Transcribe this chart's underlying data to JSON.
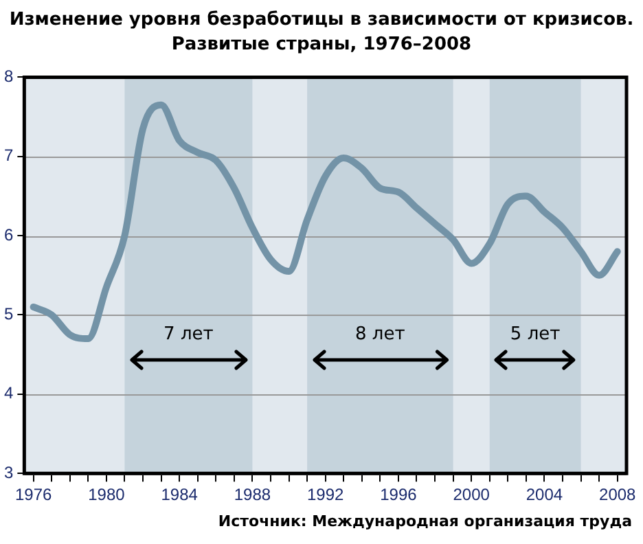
{
  "chart_data": {
    "type": "line",
    "title": "Изменение уровня безработицы в зависимости от кризисов.",
    "subtitle": "Развитые страны, 1976–2008",
    "x": [
      1976,
      1977,
      1978,
      1979,
      1980,
      1981,
      1982,
      1983,
      1984,
      1985,
      1986,
      1987,
      1988,
      1989,
      1990,
      1991,
      1992,
      1993,
      1994,
      1995,
      1996,
      1997,
      1998,
      1999,
      2000,
      2001,
      2002,
      2003,
      2004,
      2005,
      2006,
      2007,
      2008
    ],
    "series": [
      {
        "color": "#7393a7",
        "values": [
          5.1,
          5.0,
          4.75,
          4.7,
          5.35,
          6.0,
          7.35,
          7.65,
          7.2,
          7.05,
          6.95,
          6.6,
          6.1,
          5.7,
          5.55,
          6.2,
          6.75,
          6.98,
          6.85,
          6.6,
          6.55,
          6.35,
          6.15,
          5.95,
          5.65,
          5.9,
          6.4,
          6.5,
          6.3,
          6.1,
          5.8,
          5.5,
          5.8
        ]
      }
    ],
    "xlim": [
      1975.5,
      2008.5
    ],
    "xticks": [
      1976,
      {
        "value": 1977,
        "label": null
      },
      {
        "value": 1978,
        "label": null
      },
      {
        "value": 1979,
        "label": null
      },
      1980,
      {
        "value": 1981,
        "label": null
      },
      {
        "value": 1982,
        "label": null
      },
      {
        "value": 1983,
        "label": null
      },
      1984,
      {
        "value": 1985,
        "label": null
      },
      {
        "value": 1986,
        "label": null
      },
      {
        "value": 1987,
        "label": null
      },
      1988,
      {
        "value": 1989,
        "label": null
      },
      {
        "value": 1990,
        "label": null
      },
      {
        "value": 1991,
        "label": null
      },
      1992,
      {
        "value": 1993,
        "label": null
      },
      {
        "value": 1994,
        "label": null
      },
      {
        "value": 1995,
        "label": null
      },
      1996,
      {
        "value": 1997,
        "label": null
      },
      {
        "value": 1998,
        "label": null
      },
      {
        "value": 1999,
        "label": null
      },
      2000,
      {
        "value": 2001,
        "label": null
      },
      {
        "value": 2002,
        "label": null
      },
      {
        "value": 2003,
        "label": null
      },
      2004,
      {
        "value": 2005,
        "label": null
      },
      {
        "value": 2006,
        "label": null
      },
      {
        "value": 2007,
        "label": null
      },
      2008
    ],
    "ylim": [
      3,
      8
    ],
    "yticks": [
      3,
      4,
      5,
      6,
      7,
      8
    ],
    "grid": "y",
    "legend": false,
    "marker": "none",
    "line_style": "solid",
    "bands": [
      {
        "axis": "x",
        "from": 1981,
        "to": 1988,
        "label": "7 лет",
        "color": "#c5d3dc"
      },
      {
        "axis": "x",
        "from": 1991,
        "to": 1999,
        "label": "8 лет",
        "color": "#c5d3dc"
      },
      {
        "axis": "x",
        "from": 2001,
        "to": 2006,
        "label": "5 лет",
        "color": "#c5d3dc"
      }
    ],
    "annotations": [
      "Источник: Международная организация труда"
    ]
  }
}
